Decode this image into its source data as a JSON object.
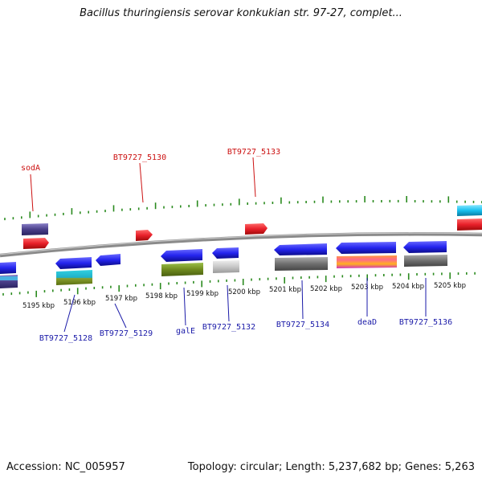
{
  "title": "Bacillus thuringiensis serovar konkukian str. 97-27, complet...",
  "footer": {
    "accession": "Accession: NC_005957",
    "summary": "Topology: circular; Length: 5,237,682 bp; Genes: 5,263"
  },
  "scale_labels": [
    "5195 kbp",
    "5196 kbp",
    "5197 kbp",
    "5198 kbp",
    "5199 kbp",
    "5200 kbp",
    "5201 kbp",
    "5202 kbp",
    "5203 kbp",
    "5204 kbp",
    "5205 kbp"
  ],
  "colors": {
    "forward_gene": "#e8202a",
    "reverse_gene": "#2a2aee",
    "forward_label": "#cc1111",
    "reverse_label": "#1a1aa8",
    "backbone": "#8a8a8a",
    "tick": "#2a8a1e"
  },
  "forward_labels": [
    {
      "text": "sodA",
      "color": "#cc1111"
    },
    {
      "text": "BT9727_5130",
      "color": "#cc1111"
    },
    {
      "text": "BT9727_5133",
      "color": "#cc1111"
    }
  ],
  "reverse_labels": [
    {
      "text": "BT9727_5128",
      "color": "#1a1aa8"
    },
    {
      "text": "BT9727_5129",
      "color": "#1a1aa8"
    },
    {
      "text": "galE",
      "color": "#1a1aa8"
    },
    {
      "text": "BT9727_5132",
      "color": "#1a1aa8"
    },
    {
      "text": "BT9727_5134",
      "color": "#1a1aa8"
    },
    {
      "text": "deaD",
      "color": "#1a1aa8"
    },
    {
      "text": "BT9727_5136",
      "color": "#1a1aa8"
    }
  ]
}
